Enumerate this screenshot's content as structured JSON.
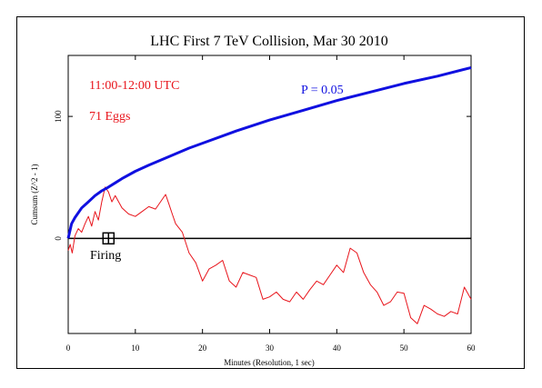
{
  "chart_data": {
    "type": "line",
    "title": "LHC First 7 TeV Collision, Mar 30 2010",
    "xlabel": "Minutes (Resolution, 1 sec)",
    "ylabel": "Cumsum (Z^2 - 1)",
    "xlim": [
      0,
      60
    ],
    "ylim": [
      -78,
      150
    ],
    "x_ticks": [
      "0",
      "10",
      "20",
      "30",
      "40",
      "50",
      "60"
    ],
    "y_ticks": [
      "0",
      "100"
    ],
    "y_tick_values": [
      0,
      100
    ],
    "annotations": {
      "time_range": "11:00-12:00 UTC",
      "eggs": "71 Eggs",
      "probability": "P = 0.05",
      "event": "Firing"
    },
    "event_marker": {
      "x": 6,
      "y": 0
    },
    "series": [
      {
        "values_x": [
          0,
          0.3,
          0.6,
          1,
          1.5,
          2,
          2.5,
          3,
          3.5,
          4,
          4.5,
          5,
          5.5,
          6,
          6.5,
          7,
          8,
          9,
          10,
          11,
          12,
          13,
          14,
          14.5,
          15,
          15.5,
          16,
          17,
          18,
          19,
          20,
          21,
          22,
          23,
          24,
          25,
          26,
          27,
          28,
          29,
          30,
          31,
          32,
          33,
          34,
          35,
          36,
          37,
          38,
          39,
          40,
          41,
          42,
          43,
          44,
          45,
          46,
          47,
          48,
          49,
          50,
          51,
          52,
          53,
          54,
          55,
          56,
          57,
          58,
          59,
          60
        ],
        "values_y": [
          -10,
          -5,
          -12,
          2,
          8,
          5,
          12,
          18,
          10,
          22,
          15,
          30,
          42,
          38,
          30,
          35,
          25,
          20,
          18,
          22,
          26,
          24,
          32,
          36,
          28,
          20,
          12,
          5,
          -12,
          -20,
          -35,
          -25,
          -22,
          -18,
          -35,
          -40,
          -28,
          -30,
          -32,
          -50,
          -48,
          -44,
          -50,
          -52,
          -44,
          -50,
          -42,
          -35,
          -38,
          -30,
          -22,
          -28,
          -8,
          -12,
          -28,
          -38,
          -44,
          -55,
          -52,
          -44,
          -45,
          -65,
          -70,
          -55,
          -58,
          -62,
          -64,
          -60,
          -62,
          -40,
          -50
        ],
        "color": "#e8141b"
      },
      {
        "values_x": [
          0,
          0.5,
          1,
          2,
          3,
          4,
          5,
          6,
          8,
          10,
          12,
          15,
          18,
          20,
          25,
          30,
          35,
          40,
          45,
          50,
          55,
          60
        ],
        "values_y": [
          0,
          12,
          17,
          25,
          30,
          35,
          39,
          42,
          49,
          55,
          60,
          67,
          74,
          78,
          88,
          97,
          105,
          113,
          120,
          127,
          133,
          140
        ],
        "color": "#1010e0"
      }
    ]
  }
}
